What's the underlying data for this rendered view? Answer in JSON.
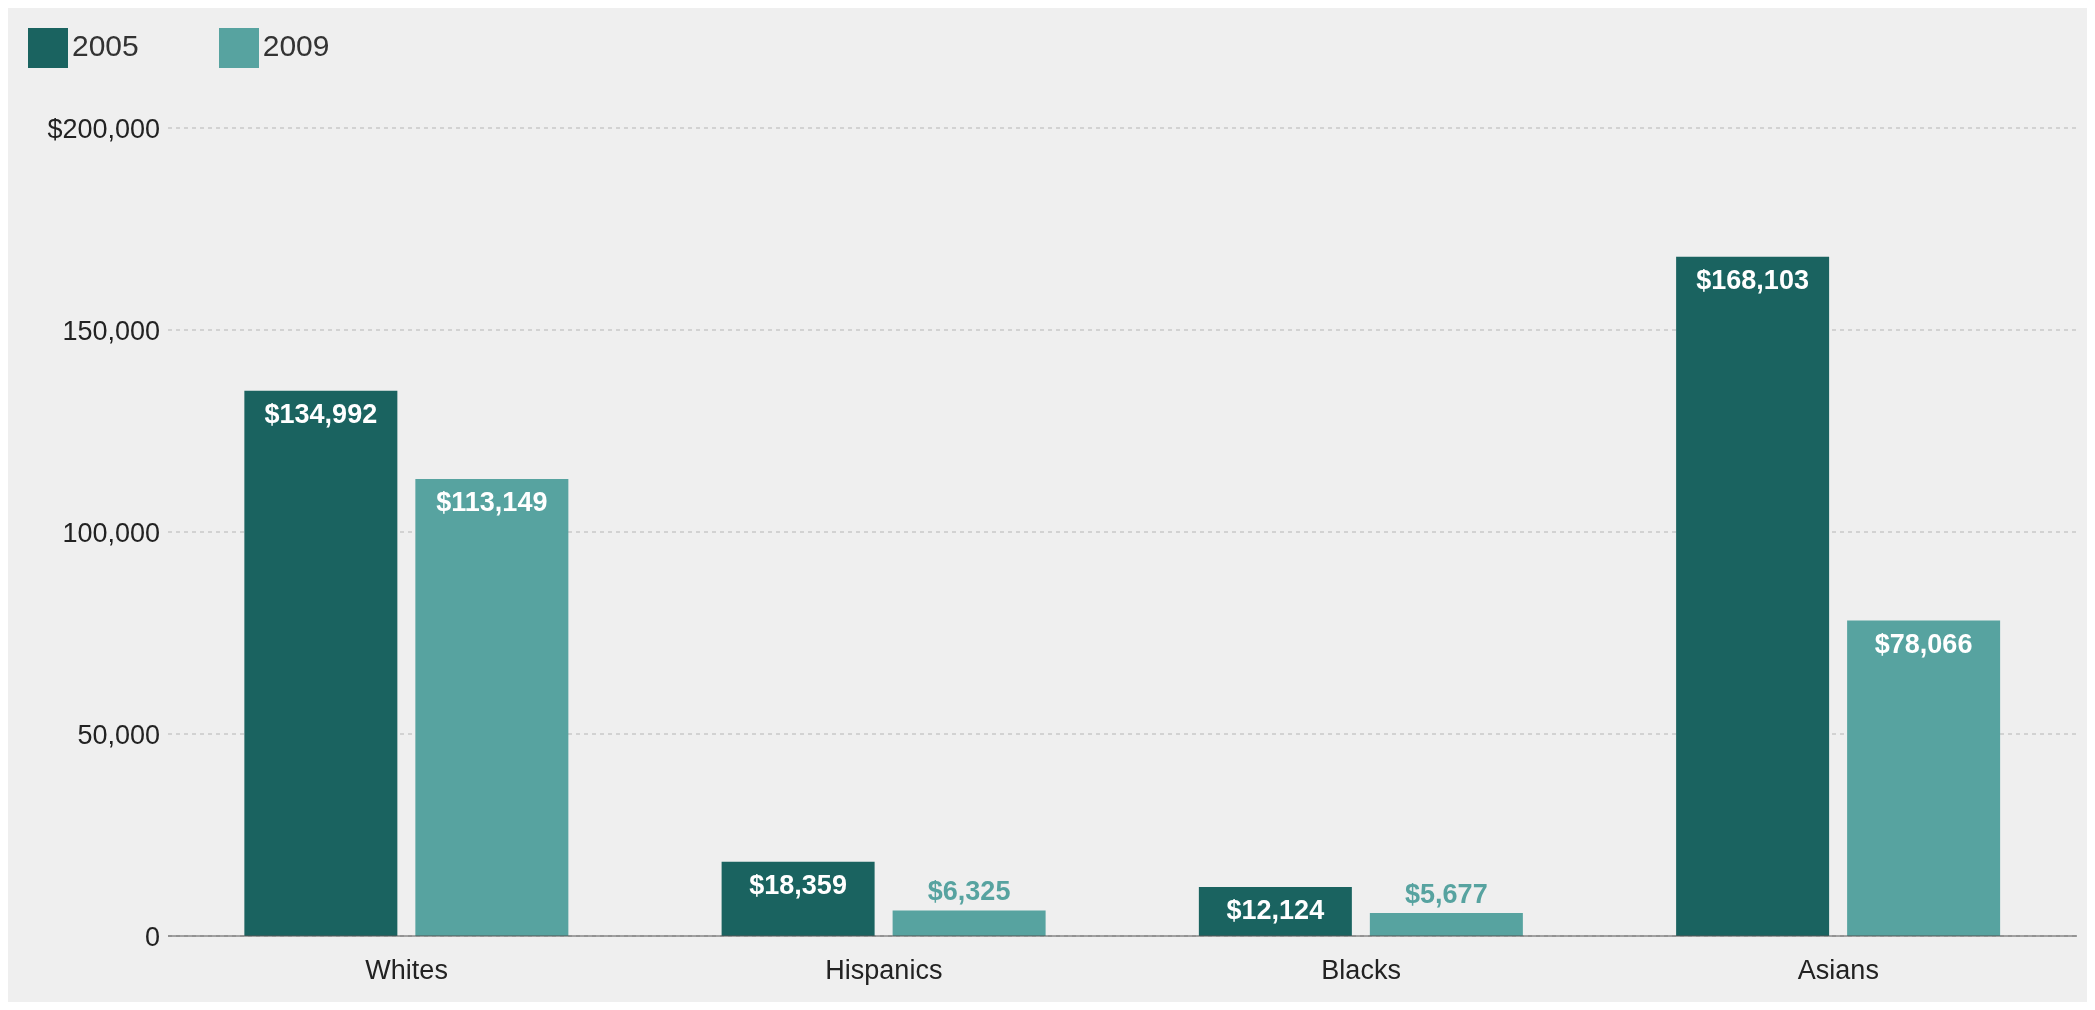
{
  "chart_data": {
    "type": "bar",
    "categories": [
      "Whites",
      "Hispanics",
      "Blacks",
      "Asians"
    ],
    "series": [
      {
        "name": "2005",
        "color": "#1a6360",
        "values": [
          134992,
          18359,
          12124,
          168103
        ],
        "value_labels": [
          "$134,992",
          "$18,359",
          "$12,124",
          "$168,103"
        ]
      },
      {
        "name": "2009",
        "color": "#57a3a0",
        "values": [
          113149,
          6325,
          5677,
          78066
        ],
        "value_labels": [
          "$113,149",
          "$6,325",
          "$5,677",
          "$78,066"
        ]
      }
    ],
    "ylim": [
      0,
      200000
    ],
    "yticks": [
      0,
      {
        "value": 50000,
        "label": "50,000"
      },
      {
        "value": 100000,
        "label": "100,000"
      },
      {
        "value": 150000,
        "label": "150,000"
      },
      {
        "value": 200000,
        "label": "$200,000"
      }
    ],
    "grid": "y",
    "legend": "top left"
  }
}
